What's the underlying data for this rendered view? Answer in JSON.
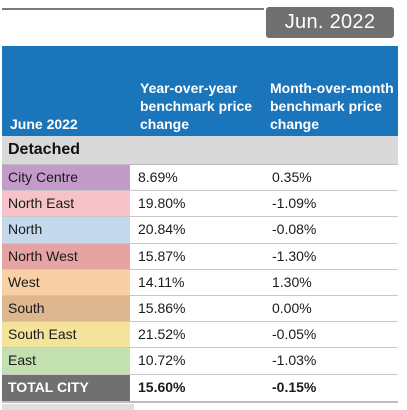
{
  "badge": {
    "date": "Jun. 2022"
  },
  "header": {
    "col1": "June 2022",
    "col2": "Year-over-year benchmark price change",
    "col3": "Month-over-month benchmark price change"
  },
  "section": {
    "title": "Detached"
  },
  "rows": [
    {
      "name": "City Centre",
      "yoy": "8.69%",
      "mom": "0.35%",
      "color": "#c39ac9"
    },
    {
      "name": "North East",
      "yoy": "19.80%",
      "mom": "-1.09%",
      "color": "#f5c3c8"
    },
    {
      "name": "North",
      "yoy": "20.84%",
      "mom": "-0.08%",
      "color": "#c5d8ec"
    },
    {
      "name": "North West",
      "yoy": "15.87%",
      "mom": "-1.30%",
      "color": "#e6a3a3"
    },
    {
      "name": "West",
      "yoy": "14.11%",
      "mom": "1.30%",
      "color": "#f9cfa6"
    },
    {
      "name": "South",
      "yoy": "15.86%",
      "mom": "0.00%",
      "color": "#dcb78f"
    },
    {
      "name": "South East",
      "yoy": "21.52%",
      "mom": "-0.05%",
      "color": "#f4e39a"
    },
    {
      "name": "East",
      "yoy": "10.72%",
      "mom": "-1.03%",
      "color": "#c3e0b0"
    }
  ],
  "total": {
    "name": "TOTAL CITY",
    "yoy": "15.60%",
    "mom": "-0.15%"
  }
}
